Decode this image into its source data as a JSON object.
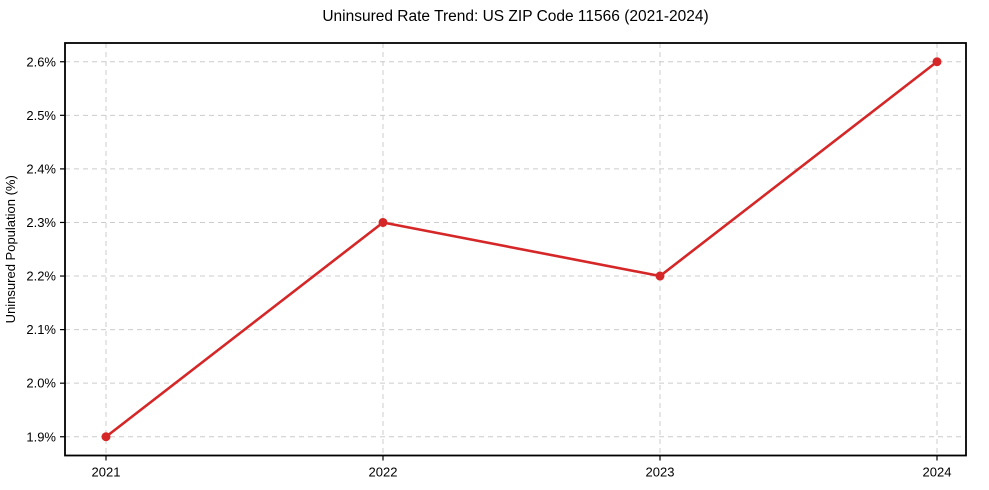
{
  "figure": {
    "background": "#ffffff"
  },
  "chart_data": {
    "type": "line",
    "title": "Uninsured Rate Trend: US ZIP Code 11566 (2021-2024)",
    "xlabel": "",
    "ylabel": "Uninsured Population (%)",
    "categories": [
      "2021",
      "2022",
      "2023",
      "2024"
    ],
    "values": [
      1.9,
      2.3,
      2.2,
      2.6
    ],
    "value_unit": "%",
    "ylim": [
      1.865,
      2.635
    ],
    "yticks": [
      1.9,
      2.0,
      2.1,
      2.2,
      2.3,
      2.4,
      2.5,
      2.6
    ],
    "ytick_labels": [
      "1.9%",
      "2.0%",
      "2.1%",
      "2.2%",
      "2.3%",
      "2.4%",
      "2.5%",
      "2.6%"
    ],
    "grid": true,
    "grid_style": "dashed",
    "legend": "none",
    "marker": "circle",
    "colors": {
      "line": "#d62728",
      "grid": "#cccccc",
      "spine": "#000000",
      "text": "#000000",
      "background": "#ffffff"
    }
  }
}
